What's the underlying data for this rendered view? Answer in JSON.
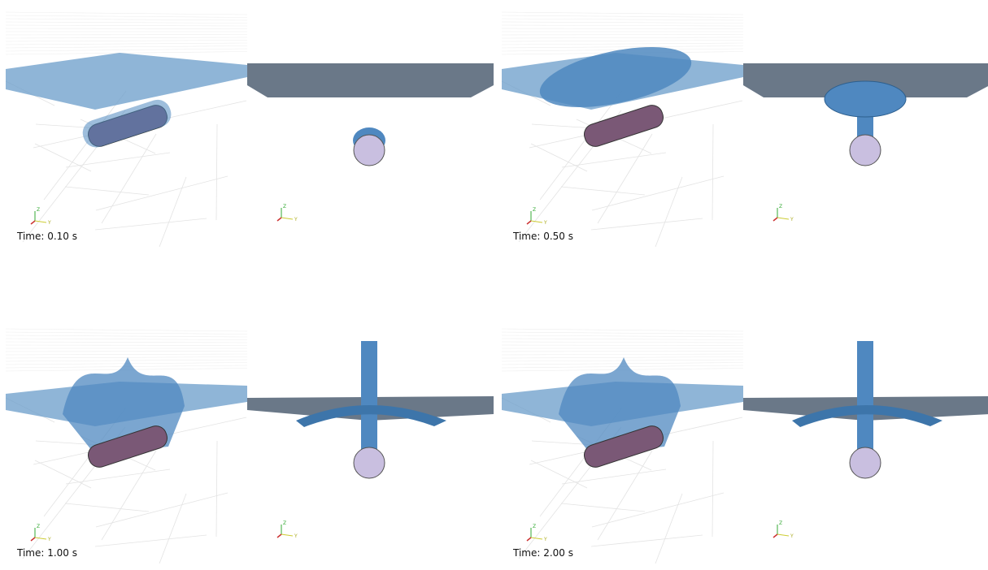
{
  "panels": [
    {
      "time": "Time: 0.10 s"
    },
    {
      "time": "Time: 0.50 s"
    },
    {
      "time": "Time: 1.00 s"
    },
    {
      "time": "Time: 2.00 s"
    }
  ],
  "axes": {
    "z": "Z",
    "y": "Y"
  }
}
